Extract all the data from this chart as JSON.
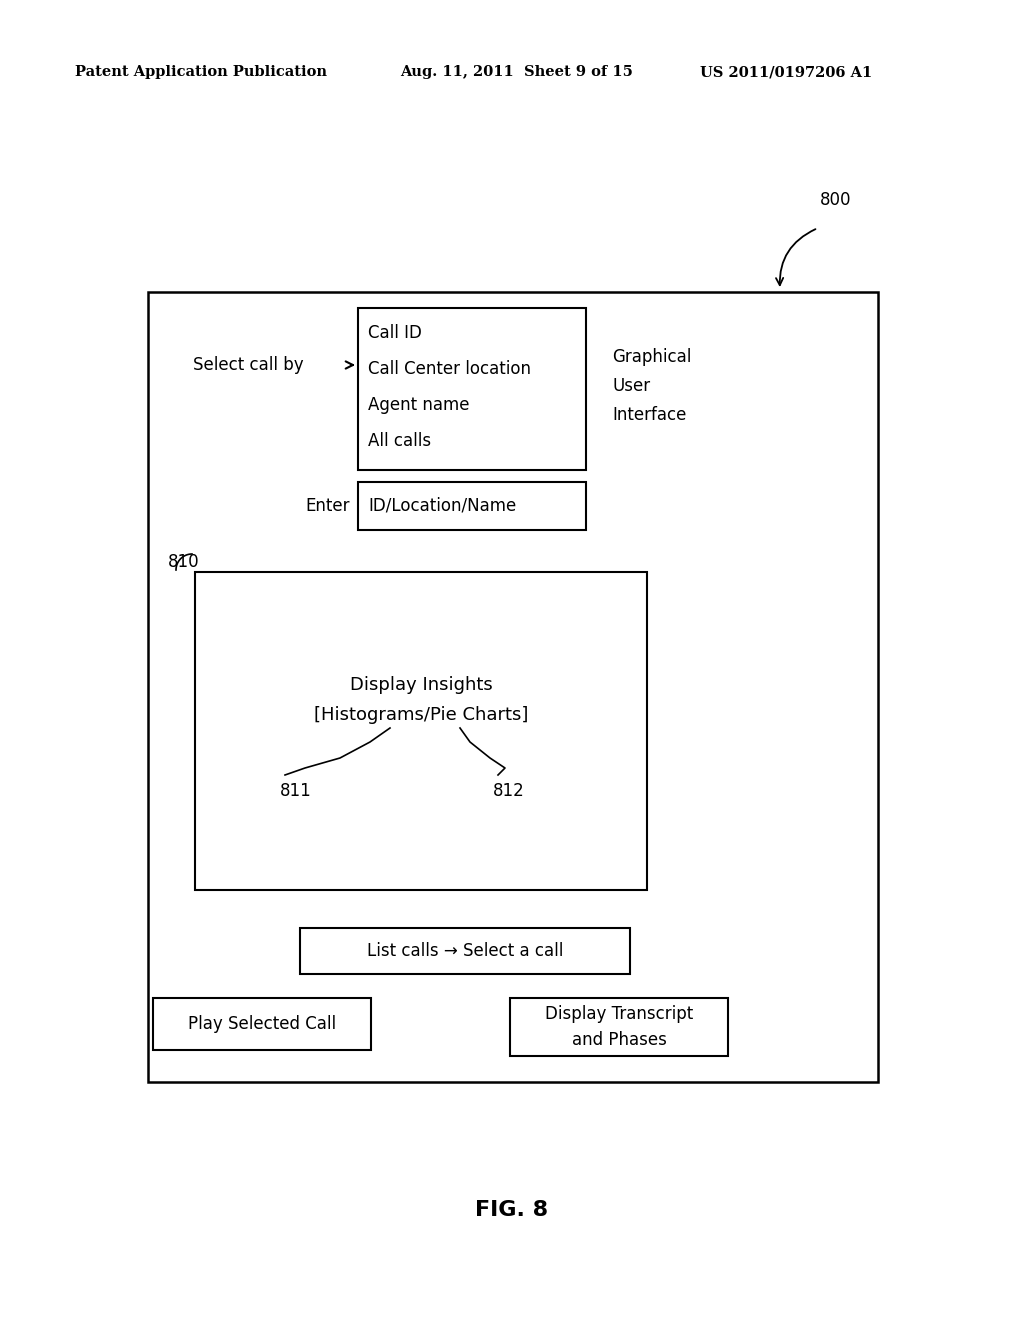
{
  "header_left": "Patent Application Publication",
  "header_mid": "Aug. 11, 2011  Sheet 9 of 15",
  "header_right": "US 2011/0197206 A1",
  "fig_label": "FIG. 8",
  "ref_800": "800",
  "ref_810": "810",
  "ref_811": "811",
  "ref_812": "812",
  "label_select_call_by": "Select call by",
  "box1_lines": [
    "Call ID",
    "Call Center location",
    "Agent name",
    "All calls"
  ],
  "label_gui": "Graphical\nUser\nInterface",
  "label_enter": "Enter",
  "box2_text": "ID/Location/Name",
  "inner_box_text_line1": "Display Insights",
  "inner_box_text_line2": "[Histograms/Pie Charts]",
  "box_list_calls": "List calls → Select a call",
  "box_play": "Play Selected Call",
  "box_display": "Display Transcript\nand Phases",
  "bg_color": "#ffffff",
  "box_color": "#ffffff",
  "border_color": "#000000",
  "text_color": "#000000"
}
